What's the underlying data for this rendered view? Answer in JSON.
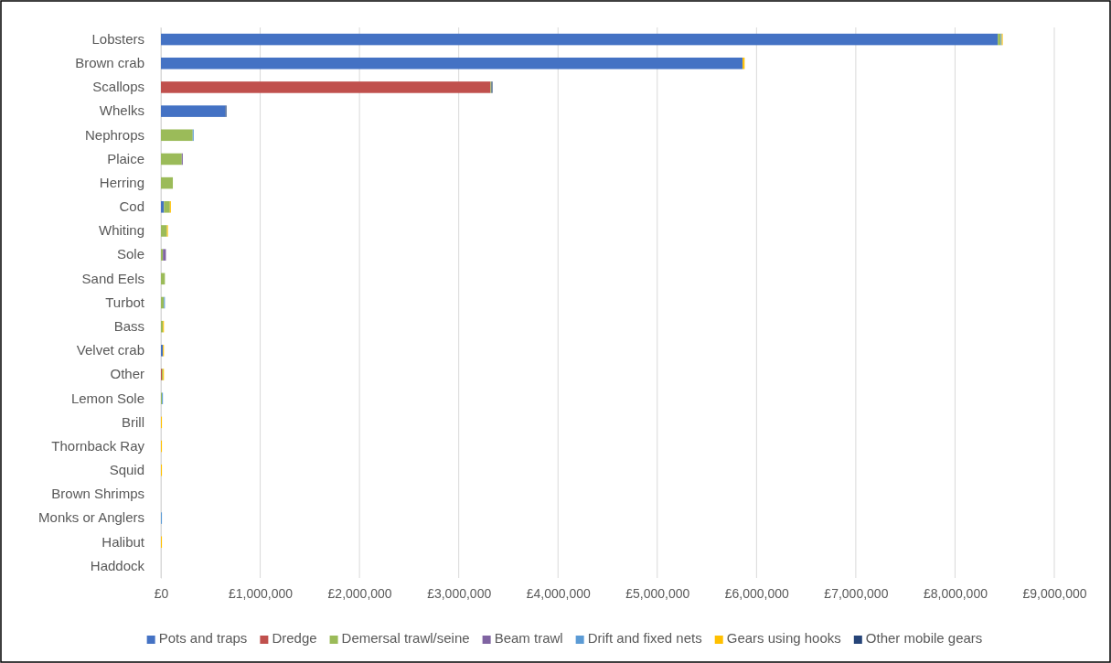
{
  "chart_data": {
    "type": "bar",
    "orientation": "horizontal",
    "stacked": true,
    "categories": [
      "Lobsters",
      "Brown crab",
      "Scallops",
      "Whelks",
      "Nephrops",
      "Plaice",
      "Herring",
      "Cod",
      "Whiting",
      "Sole",
      "Sand Eels",
      "Turbot",
      "Bass",
      "Velvet crab",
      "Other",
      "Lemon Sole",
      "Brill",
      "Thornback Ray",
      "Squid",
      "Brown Shrimps",
      "Monks or Anglers",
      "Halibut",
      "Haddock"
    ],
    "series": [
      {
        "name": "Pots and traps",
        "color": "#4472c4",
        "values": [
          8430000,
          5860000,
          0,
          650000,
          0,
          0,
          0,
          30000,
          0,
          0,
          0,
          0,
          0,
          20000,
          0,
          0,
          0,
          0,
          0,
          0,
          0,
          0,
          0
        ]
      },
      {
        "name": "Dredge",
        "color": "#c0504d",
        "values": [
          0,
          0,
          3320000,
          0,
          0,
          0,
          0,
          0,
          0,
          0,
          0,
          0,
          0,
          0,
          10000,
          0,
          0,
          0,
          0,
          0,
          0,
          0,
          0
        ]
      },
      {
        "name": "Demersal trawl/seine",
        "color": "#9bbb59",
        "values": [
          30000,
          0,
          10000,
          0,
          320000,
          210000,
          120000,
          60000,
          60000,
          20000,
          40000,
          30000,
          20000,
          0,
          10000,
          10000,
          0,
          0,
          0,
          0,
          0,
          0,
          0
        ]
      },
      {
        "name": "Beam trawl",
        "color": "#8064a2",
        "values": [
          0,
          0,
          0,
          0,
          0,
          10000,
          0,
          0,
          0,
          30000,
          0,
          0,
          0,
          0,
          0,
          0,
          0,
          0,
          0,
          0,
          0,
          0,
          0
        ]
      },
      {
        "name": "Drift and fixed nets",
        "color": "#5b9bd5",
        "values": [
          10000,
          0,
          0,
          0,
          10000,
          0,
          0,
          0,
          0,
          0,
          0,
          10000,
          0,
          0,
          0,
          10000,
          0,
          0,
          0,
          0,
          10000,
          0,
          0
        ]
      },
      {
        "name": "Gears using hooks",
        "color": "#ffc000",
        "values": [
          10000,
          20000,
          0,
          0,
          0,
          0,
          0,
          10000,
          10000,
          0,
          0,
          0,
          10000,
          10000,
          10000,
          0,
          10000,
          10000,
          10000,
          0,
          0,
          10000,
          0
        ]
      },
      {
        "name": "Other mobile gears",
        "color": "#264478",
        "values": [
          0,
          0,
          10000,
          10000,
          0,
          0,
          0,
          0,
          0,
          0,
          0,
          0,
          0,
          0,
          0,
          0,
          0,
          0,
          0,
          0,
          0,
          0,
          0
        ]
      }
    ],
    "xlim": [
      0,
      9000000
    ],
    "xticks": [
      {
        "value": 0,
        "label": "£0"
      },
      {
        "value": 1000000,
        "label": "£1,000,000"
      },
      {
        "value": 2000000,
        "label": "£2,000,000"
      },
      {
        "value": 3000000,
        "label": "£3,000,000"
      },
      {
        "value": 4000000,
        "label": "£4,000,000"
      },
      {
        "value": 5000000,
        "label": "£5,000,000"
      },
      {
        "value": 6000000,
        "label": "£6,000,000"
      },
      {
        "value": 7000000,
        "label": "£7,000,000"
      },
      {
        "value": 8000000,
        "label": "£8,000,000"
      },
      {
        "value": 9000000,
        "label": "£9,000,000"
      }
    ],
    "grid": "x",
    "legend": "bottom"
  }
}
